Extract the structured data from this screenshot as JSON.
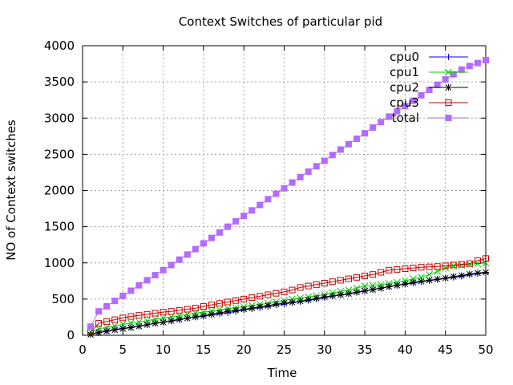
{
  "chart_data": {
    "type": "line",
    "title": "Context Switches of particular pid",
    "xlabel": "Time",
    "ylabel": "NO of Context switches",
    "xlim": [
      0,
      50
    ],
    "ylim": [
      0,
      4000
    ],
    "xticks": [
      0,
      5,
      10,
      15,
      20,
      25,
      30,
      35,
      40,
      45,
      50
    ],
    "yticks": [
      0,
      500,
      1000,
      1500,
      2000,
      2500,
      3000,
      3500,
      4000
    ],
    "grid": true,
    "legend_position": "top-right",
    "series": [
      {
        "name": "cpu0",
        "color": "#0000ff",
        "marker": "plus",
        "x": [
          1,
          2,
          3,
          4,
          5,
          6,
          7,
          8,
          9,
          10,
          11,
          12,
          13,
          14,
          15,
          16,
          17,
          18,
          19,
          20,
          21,
          22,
          23,
          24,
          25,
          26,
          27,
          28,
          29,
          30,
          31,
          32,
          33,
          34,
          35,
          36,
          37,
          38,
          39,
          40,
          41,
          42,
          43,
          44,
          45,
          46,
          47,
          48,
          49,
          50
        ],
        "y": [
          15,
          40,
          60,
          80,
          95,
          110,
          125,
          145,
          165,
          180,
          195,
          215,
          235,
          250,
          265,
          280,
          295,
          310,
          330,
          350,
          365,
          380,
          395,
          415,
          430,
          450,
          465,
          480,
          500,
          520,
          540,
          555,
          570,
          590,
          610,
          630,
          650,
          670,
          690,
          705,
          720,
          740,
          755,
          770,
          785,
          800,
          815,
          835,
          850,
          860
        ]
      },
      {
        "name": "cpu1",
        "color": "#00cc00",
        "marker": "cross",
        "x": [
          1,
          2,
          3,
          4,
          5,
          6,
          7,
          8,
          9,
          10,
          11,
          12,
          13,
          14,
          15,
          16,
          17,
          18,
          19,
          20,
          21,
          22,
          23,
          24,
          25,
          26,
          27,
          28,
          29,
          30,
          31,
          32,
          33,
          34,
          35,
          36,
          37,
          38,
          39,
          40,
          41,
          42,
          43,
          44,
          45,
          46,
          47,
          48,
          49,
          50
        ],
        "y": [
          50,
          90,
          110,
          130,
          150,
          170,
          185,
          200,
          220,
          240,
          255,
          270,
          290,
          305,
          320,
          335,
          350,
          370,
          380,
          395,
          410,
          425,
          440,
          460,
          480,
          500,
          515,
          530,
          545,
          560,
          585,
          605,
          625,
          650,
          680,
          690,
          700,
          715,
          730,
          750,
          780,
          800,
          840,
          880,
          930,
          960,
          970,
          980,
          990,
          1000
        ]
      },
      {
        "name": "cpu2",
        "color": "#000000",
        "marker": "star",
        "x": [
          1,
          2,
          3,
          4,
          5,
          6,
          7,
          8,
          9,
          10,
          11,
          12,
          13,
          14,
          15,
          16,
          17,
          18,
          19,
          20,
          21,
          22,
          23,
          24,
          25,
          26,
          27,
          28,
          29,
          30,
          31,
          32,
          33,
          34,
          35,
          36,
          37,
          38,
          39,
          40,
          41,
          42,
          43,
          44,
          45,
          46,
          47,
          48,
          49,
          50
        ],
        "y": [
          10,
          35,
          55,
          75,
          90,
          105,
          125,
          145,
          165,
          180,
          200,
          220,
          235,
          255,
          270,
          290,
          310,
          330,
          345,
          360,
          375,
          395,
          410,
          430,
          445,
          455,
          470,
          490,
          510,
          530,
          545,
          560,
          575,
          595,
          615,
          630,
          650,
          670,
          690,
          710,
          730,
          745,
          760,
          775,
          790,
          810,
          825,
          845,
          860,
          870
        ]
      },
      {
        "name": "cpu3",
        "color": "#cc0000",
        "marker": "square",
        "x": [
          1,
          2,
          3,
          4,
          5,
          6,
          7,
          8,
          9,
          10,
          11,
          12,
          13,
          14,
          15,
          16,
          17,
          18,
          19,
          20,
          21,
          22,
          23,
          24,
          25,
          26,
          27,
          28,
          29,
          30,
          31,
          32,
          33,
          34,
          35,
          36,
          37,
          38,
          39,
          40,
          41,
          42,
          43,
          44,
          45,
          46,
          47,
          48,
          49,
          50
        ],
        "y": [
          45,
          165,
          190,
          215,
          240,
          260,
          275,
          290,
          305,
          320,
          330,
          345,
          360,
          375,
          400,
          420,
          440,
          460,
          480,
          500,
          520,
          540,
          560,
          580,
          600,
          625,
          660,
          680,
          700,
          720,
          740,
          760,
          780,
          800,
          820,
          840,
          870,
          900,
          910,
          920,
          930,
          940,
          945,
          950,
          960,
          970,
          980,
          990,
          1030,
          1060
        ]
      },
      {
        "name": "total",
        "color": "#b36bff",
        "marker": "filled-square",
        "x": [
          1,
          2,
          3,
          4,
          5,
          6,
          7,
          8,
          9,
          10,
          11,
          12,
          13,
          14,
          15,
          16,
          17,
          18,
          19,
          20,
          21,
          22,
          23,
          24,
          25,
          26,
          27,
          28,
          29,
          30,
          31,
          32,
          33,
          34,
          35,
          36,
          37,
          38,
          39,
          40,
          41,
          42,
          43,
          44,
          45,
          46,
          47,
          48,
          49,
          50
        ],
        "y": [
          120,
          330,
          400,
          475,
          545,
          615,
          690,
          760,
          830,
          900,
          970,
          1045,
          1115,
          1190,
          1270,
          1345,
          1420,
          1500,
          1575,
          1650,
          1725,
          1800,
          1880,
          1955,
          2030,
          2110,
          2185,
          2260,
          2335,
          2410,
          2490,
          2565,
          2640,
          2715,
          2790,
          2870,
          2945,
          3020,
          3095,
          3165,
          3240,
          3315,
          3390,
          3460,
          3535,
          3605,
          3670,
          3720,
          3760,
          3800
        ]
      }
    ]
  }
}
